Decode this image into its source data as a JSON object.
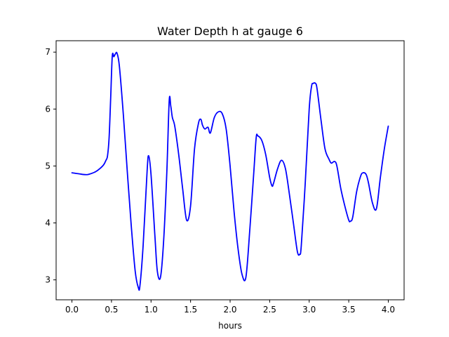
{
  "chart_data": {
    "type": "line",
    "title": "Water Depth h at gauge 6",
    "xlabel": "hours",
    "ylabel": "",
    "xlim": [
      -0.2,
      4.2
    ],
    "ylim": [
      2.65,
      7.2
    ],
    "xticks": [
      0.0,
      0.5,
      1.0,
      1.5,
      2.0,
      2.5,
      3.0,
      3.5,
      4.0
    ],
    "xtick_labels": [
      "0.0",
      "0.5",
      "1.0",
      "1.5",
      "2.0",
      "2.5",
      "3.0",
      "3.5",
      "4.0"
    ],
    "yticks": [
      3,
      4,
      5,
      6,
      7
    ],
    "ytick_labels": [
      "3",
      "4",
      "5",
      "6",
      "7"
    ],
    "grid": false,
    "series": [
      {
        "color": "#0000ff",
        "x": [
          0.0,
          0.05,
          0.1,
          0.15,
          0.2,
          0.25,
          0.3,
          0.35,
          0.4,
          0.43,
          0.45,
          0.47,
          0.49,
          0.51,
          0.53,
          0.55,
          0.57,
          0.6,
          0.65,
          0.7,
          0.75,
          0.8,
          0.84,
          0.86,
          0.9,
          0.95,
          0.97,
          1.0,
          1.05,
          1.08,
          1.12,
          1.16,
          1.2,
          1.23,
          1.25,
          1.27,
          1.3,
          1.35,
          1.4,
          1.45,
          1.5,
          1.55,
          1.6,
          1.63,
          1.65,
          1.68,
          1.72,
          1.75,
          1.8,
          1.85,
          1.9,
          1.95,
          2.0,
          2.05,
          2.1,
          2.15,
          2.2,
          2.25,
          2.3,
          2.33,
          2.35,
          2.4,
          2.45,
          2.5,
          2.53,
          2.55,
          2.6,
          2.65,
          2.7,
          2.75,
          2.8,
          2.85,
          2.88,
          2.9,
          2.95,
          3.0,
          3.03,
          3.05,
          3.08,
          3.1,
          3.15,
          3.2,
          3.25,
          3.28,
          3.32,
          3.35,
          3.4,
          3.45,
          3.5,
          3.52,
          3.55,
          3.6,
          3.65,
          3.68,
          3.72,
          3.75,
          3.8,
          3.85,
          3.9,
          3.95,
          4.0
        ],
        "y": [
          4.88,
          4.87,
          4.86,
          4.85,
          4.85,
          4.87,
          4.9,
          4.95,
          5.02,
          5.1,
          5.18,
          5.5,
          6.2,
          6.93,
          6.92,
          6.97,
          6.98,
          6.75,
          5.9,
          4.9,
          3.95,
          3.15,
          2.86,
          2.9,
          3.6,
          4.9,
          5.18,
          4.85,
          3.75,
          3.15,
          3.05,
          3.7,
          4.9,
          6.15,
          6.05,
          5.85,
          5.7,
          5.2,
          4.6,
          4.05,
          4.3,
          5.3,
          5.75,
          5.82,
          5.72,
          5.65,
          5.68,
          5.58,
          5.85,
          5.95,
          5.92,
          5.65,
          5.0,
          4.2,
          3.55,
          3.1,
          3.05,
          3.9,
          4.9,
          5.5,
          5.53,
          5.45,
          5.2,
          4.8,
          4.65,
          4.7,
          4.95,
          5.1,
          4.95,
          4.5,
          4.0,
          3.5,
          3.45,
          3.6,
          4.7,
          6.0,
          6.4,
          6.45,
          6.45,
          6.35,
          5.8,
          5.3,
          5.12,
          5.05,
          5.08,
          5.0,
          4.6,
          4.3,
          4.05,
          4.03,
          4.1,
          4.55,
          4.82,
          4.88,
          4.85,
          4.7,
          4.35,
          4.25,
          4.8,
          5.3,
          5.7
        ]
      }
    ]
  }
}
